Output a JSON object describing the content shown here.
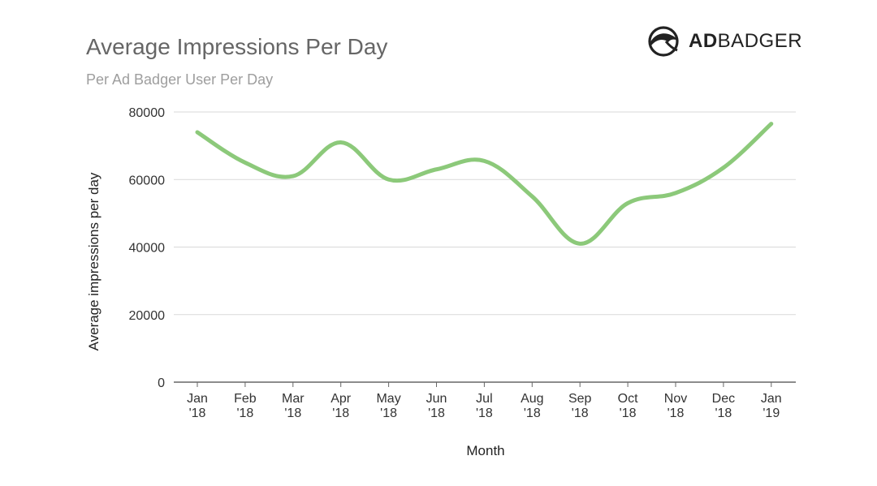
{
  "header": {
    "title": "Average Impressions Per Day",
    "subtitle": "Per Ad Badger User Per Day"
  },
  "logo": {
    "icon": "badger-head-icon",
    "brand_bold": "AD",
    "brand_light": "BADGER"
  },
  "colors": {
    "line": "#8cc97a",
    "grid": "#d9d9d9",
    "axis": "#666666",
    "text": "#333333"
  },
  "chart_data": {
    "type": "line",
    "title": "Average Impressions Per Day",
    "subtitle": "Per Ad Badger User Per Day",
    "xlabel": "Month",
    "ylabel": "Average impressions per day",
    "categories": [
      [
        "Jan",
        "'18"
      ],
      [
        "Feb",
        "'18"
      ],
      [
        "Mar",
        "'18"
      ],
      [
        "Apr",
        "'18"
      ],
      [
        "May",
        "'18"
      ],
      [
        "Jun",
        "'18"
      ],
      [
        "Jul",
        "'18"
      ],
      [
        "Aug",
        "'18"
      ],
      [
        "Sep",
        "'18"
      ],
      [
        "Oct",
        "'18"
      ],
      [
        "Nov",
        "'18"
      ],
      [
        "Dec",
        "'18"
      ],
      [
        "Jan",
        "'19"
      ]
    ],
    "series": [
      {
        "values": [
          74000,
          65000,
          61000,
          71000,
          60000,
          63000,
          65500,
          55000,
          41000,
          53000,
          56000,
          63500,
          76500
        ]
      }
    ],
    "ylim": [
      0,
      80000
    ],
    "yticks": [
      0,
      20000,
      40000,
      60000,
      80000
    ],
    "grid": true,
    "smooth": true
  }
}
